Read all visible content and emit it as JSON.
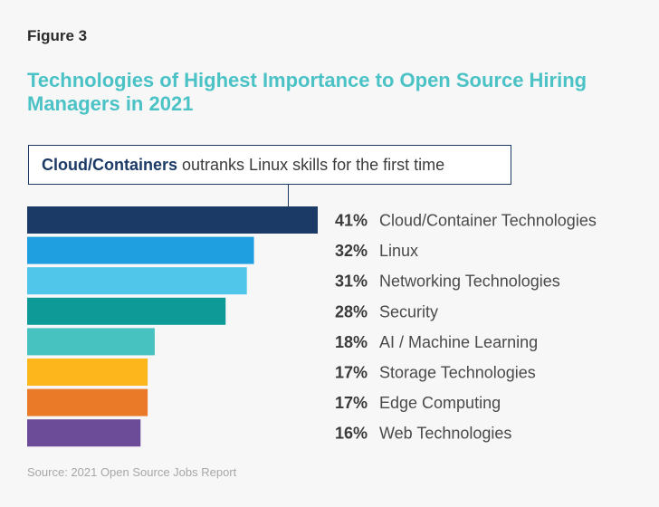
{
  "figure_label": "Figure 3",
  "chart_data": {
    "type": "bar",
    "orientation": "horizontal",
    "title": "Technologies of Highest Importance to Open Source Hiring Managers in 2021",
    "callout": {
      "bold": "Cloud/Containers",
      "rest": " outranks Linux skills for the first time"
    },
    "categories": [
      "Cloud/Container Technologies",
      "Linux",
      "Networking Technologies",
      "Security",
      "AI / Machine Learning",
      "Storage Technologies",
      "Edge Computing",
      "Web Technologies"
    ],
    "values": [
      41,
      32,
      31,
      28,
      18,
      17,
      17,
      16
    ],
    "value_labels": [
      "41%",
      "32%",
      "31%",
      "28%",
      "18%",
      "17%",
      "17%",
      "16%"
    ],
    "colors": [
      "#1b3a66",
      "#1f9ee0",
      "#4fc6ea",
      "#0e9b97",
      "#47c2c0",
      "#fdb71d",
      "#ea7a28",
      "#6c4c99"
    ],
    "xlim": [
      0,
      41
    ],
    "xlabel": "",
    "ylabel": ""
  },
  "source": "Source: 2021 Open Source Jobs Report"
}
